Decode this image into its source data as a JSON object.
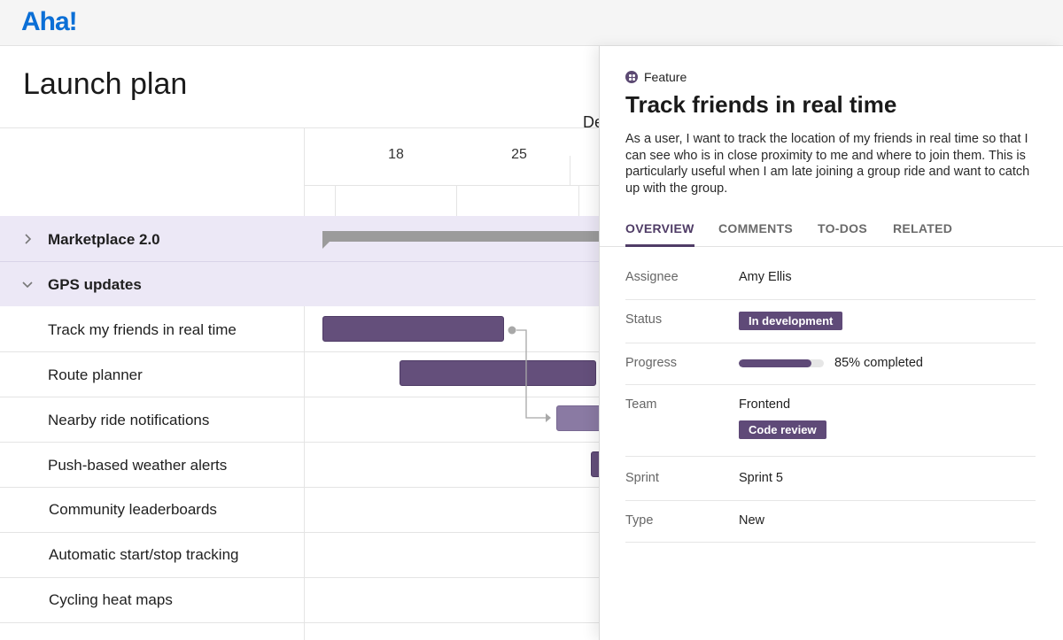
{
  "app": {
    "logo": "Aha!"
  },
  "page": {
    "title": "Launch plan"
  },
  "timeline": {
    "month": "De",
    "weeks": [
      "18",
      "25"
    ]
  },
  "rows": [
    {
      "label": "Marketplace 2.0",
      "type": "group",
      "expanded": false
    },
    {
      "label": "GPS updates",
      "type": "group",
      "expanded": true
    },
    {
      "label": "Track my friends in real time",
      "type": "feature"
    },
    {
      "label": "Route planner",
      "type": "feature"
    },
    {
      "label": "Nearby ride notifications",
      "type": "feature"
    },
    {
      "label": "Push-based weather alerts",
      "type": "feature"
    },
    {
      "label": "Community leaderboards",
      "type": "feature"
    },
    {
      "label": "Automatic start/stop tracking",
      "type": "feature"
    },
    {
      "label": "Cycling heat maps",
      "type": "feature"
    }
  ],
  "panel": {
    "record_type": "Feature",
    "title": "Track friends in real time",
    "description": "As a user, I want to track the location of my friends in real time so that I can see who is in close proximity to me and where to join them. This is particularly useful when I am late joining a group ride and want to catch up with the group.",
    "tabs": [
      "OVERVIEW",
      "COMMENTS",
      "TO-DOS",
      "RELATED"
    ],
    "active_tab": "OVERVIEW",
    "fields": {
      "assignee": {
        "label": "Assignee",
        "value": "Amy Ellis"
      },
      "status": {
        "label": "Status",
        "value": "In development"
      },
      "progress": {
        "label": "Progress",
        "value": "85% completed",
        "percent": 85
      },
      "team": {
        "label": "Team",
        "value": "Frontend",
        "tag": "Code review"
      },
      "sprint": {
        "label": "Sprint",
        "value": "Sprint 5"
      },
      "type": {
        "label": "Type",
        "value": "New"
      }
    }
  },
  "colors": {
    "brand": "#0b6fd6",
    "accent": "#5f4a78",
    "group_row": "#ece8f6",
    "bar": "#644f7b",
    "bar_light": "#8a7aa3",
    "summary_bar": "#9b9b9b"
  },
  "icons": {
    "group_collapsed": "chevron-right-icon",
    "group_expanded": "chevron-down-icon",
    "record_type": "feature-icon"
  }
}
